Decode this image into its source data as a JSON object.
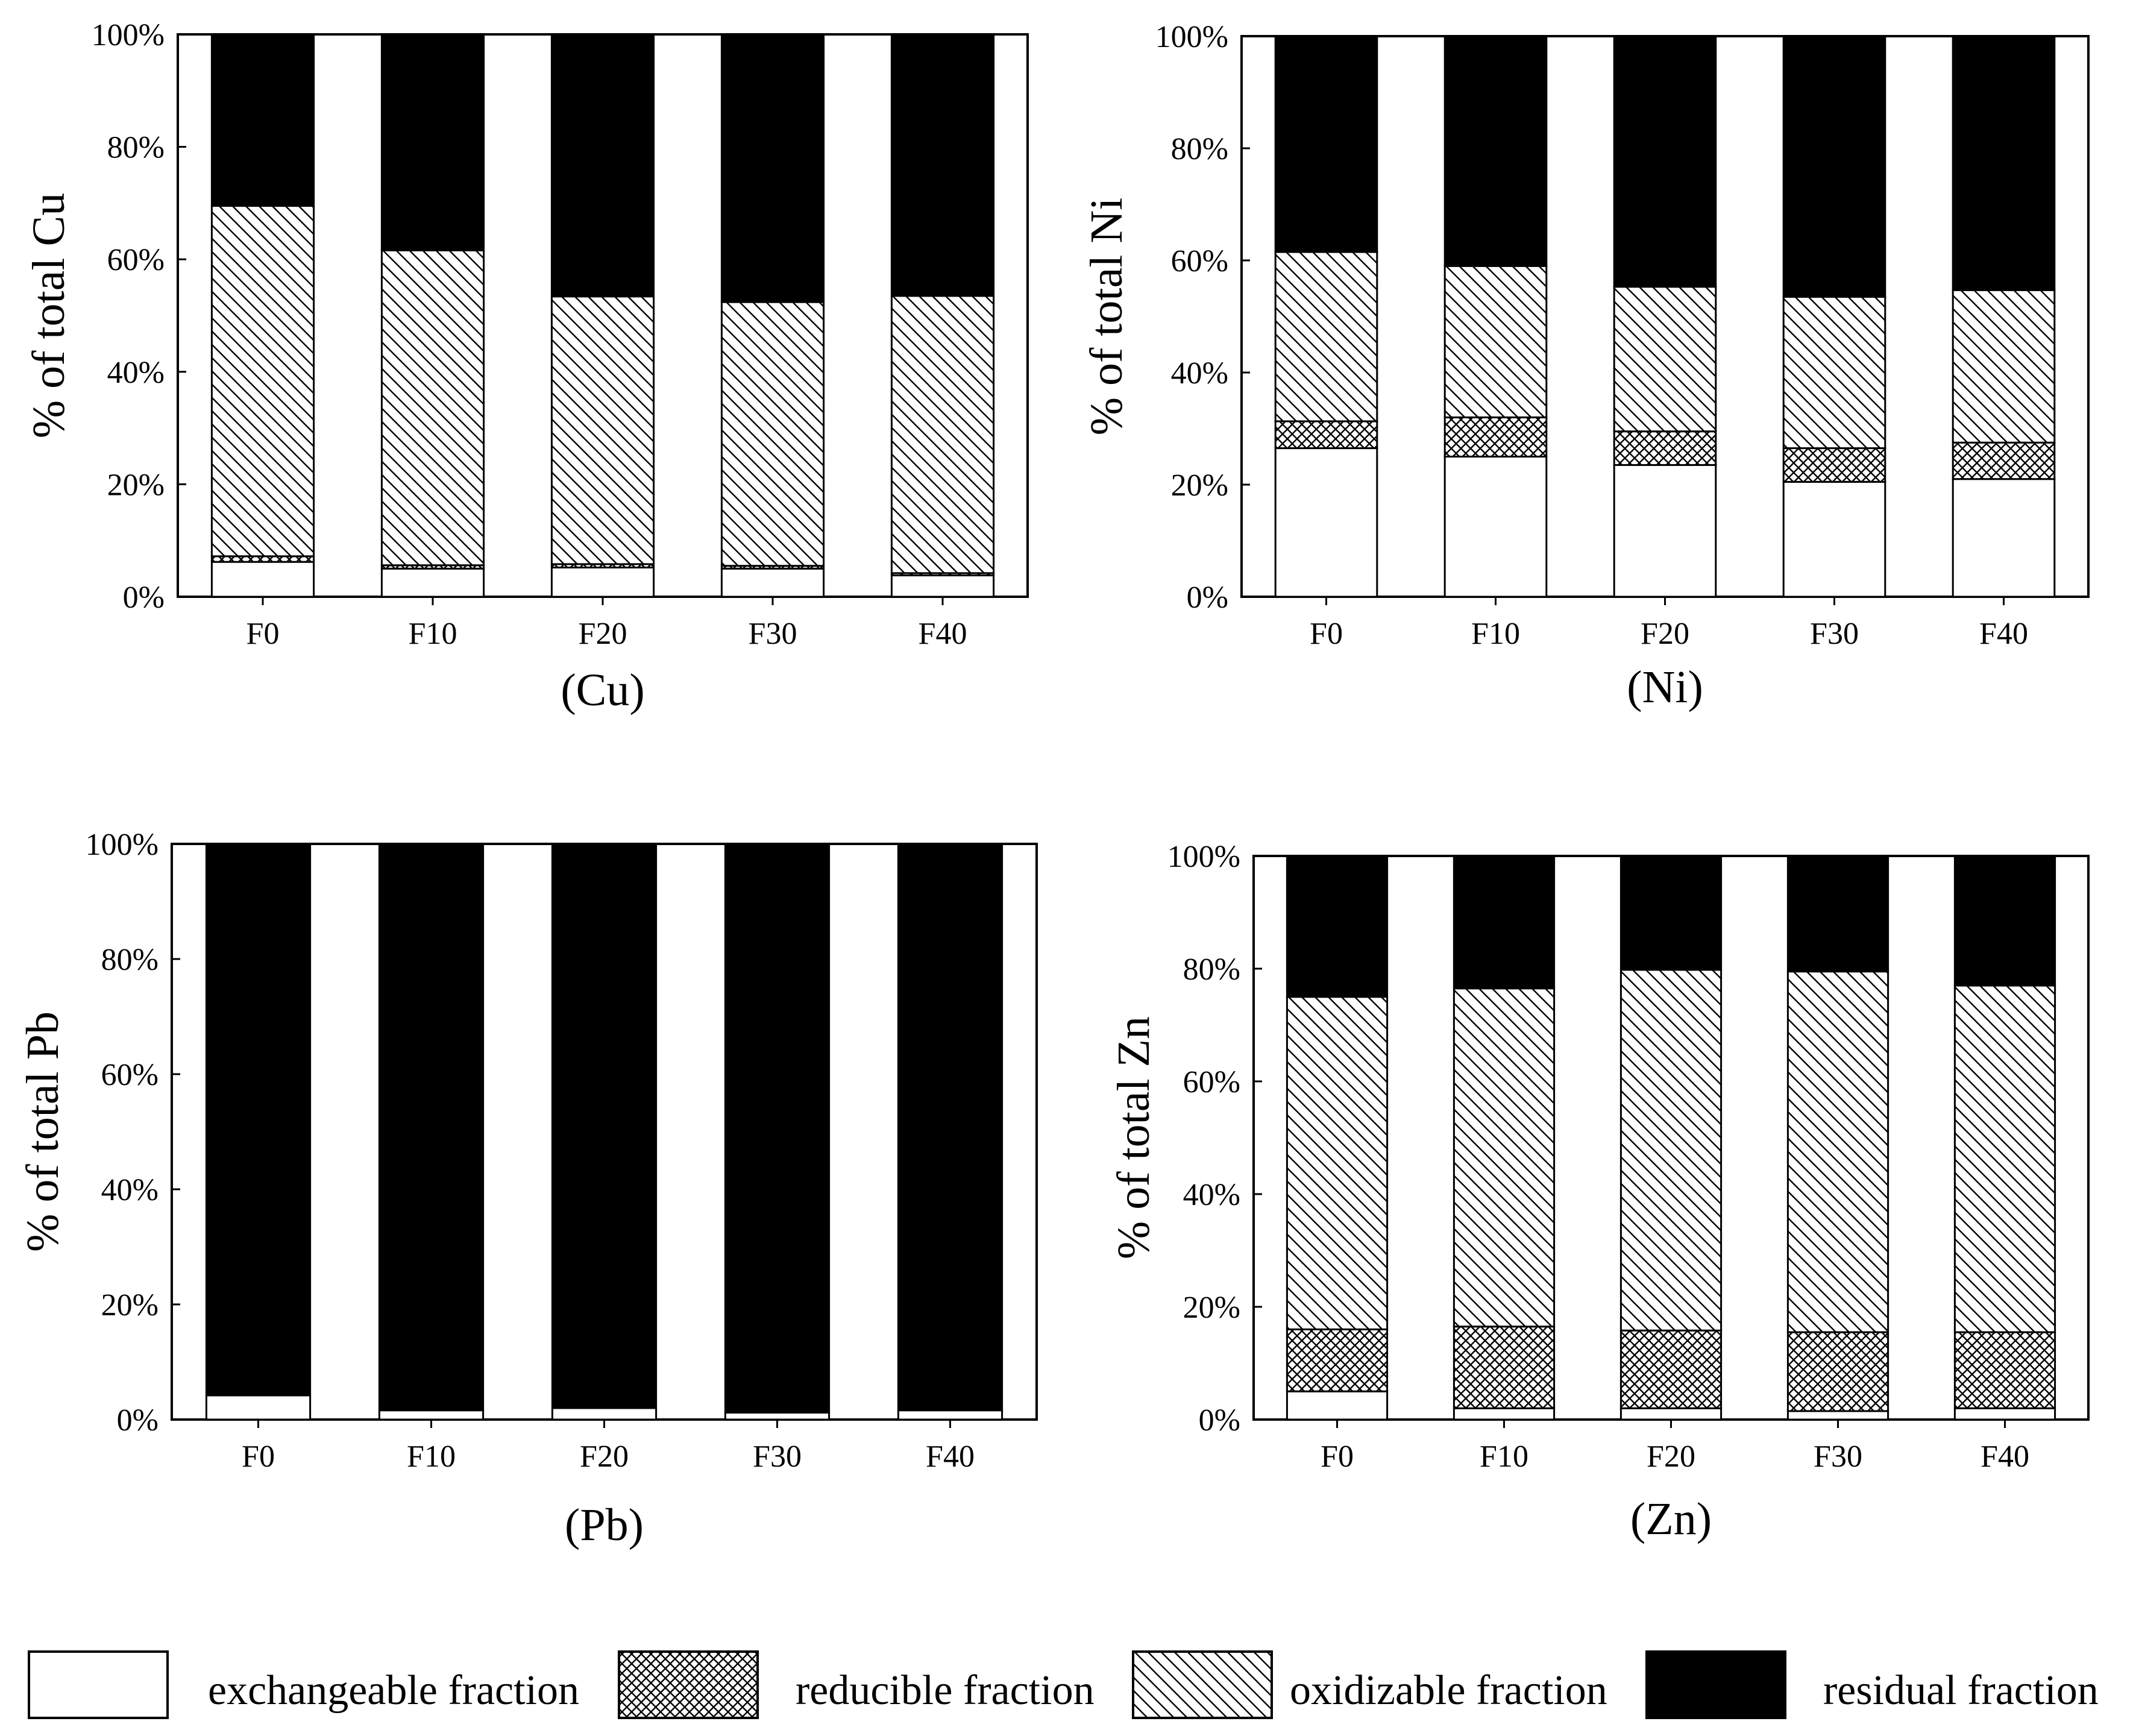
{
  "colors": {
    "ink": "#000000",
    "paper": "#ffffff"
  },
  "legend": [
    {
      "key": "exchangeable",
      "label": "exchangeable fraction",
      "pattern": "blank"
    },
    {
      "key": "reducible",
      "label": "reducible fraction",
      "pattern": "crosshatch"
    },
    {
      "key": "oxidizable",
      "label": "oxidizable fraction",
      "pattern": "diagonal-hatch"
    },
    {
      "key": "residual",
      "label": "residual fraction",
      "pattern": "solid-black"
    }
  ],
  "chart_data": [
    {
      "type": "bar",
      "stacked": true,
      "title": "(Cu)",
      "ylabel": "% of total Cu",
      "xlabel": "",
      "ylim": [
        0,
        100
      ],
      "yticks": [
        "0%",
        "20%",
        "40%",
        "60%",
        "80%",
        "100%"
      ],
      "categories": [
        "F0",
        "F10",
        "F20",
        "F30",
        "F40"
      ],
      "series": [
        {
          "name": "exchangeable fraction",
          "values": [
            6.2,
            5.0,
            5.2,
            5.0,
            3.8
          ]
        },
        {
          "name": "reducible fraction",
          "values": [
            1.0,
            0.6,
            0.6,
            0.5,
            0.4
          ]
        },
        {
          "name": "oxidizable fraction",
          "values": [
            62.3,
            56.0,
            47.6,
            46.9,
            49.3
          ]
        },
        {
          "name": "residual fraction",
          "values": [
            30.5,
            38.4,
            46.6,
            47.6,
            46.5
          ]
        }
      ]
    },
    {
      "type": "bar",
      "stacked": true,
      "title": "(Ni)",
      "ylabel": "% of total Ni",
      "xlabel": "",
      "ylim": [
        0,
        100
      ],
      "yticks": [
        "0%",
        "20%",
        "40%",
        "60%",
        "80%",
        "100%"
      ],
      "categories": [
        "F0",
        "F10",
        "F20",
        "F30",
        "F40"
      ],
      "series": [
        {
          "name": "exchangeable fraction",
          "values": [
            26.5,
            25.0,
            23.5,
            20.5,
            21.0
          ]
        },
        {
          "name": "reducible fraction",
          "values": [
            4.8,
            7.0,
            6.0,
            6.0,
            6.5
          ]
        },
        {
          "name": "oxidizable fraction",
          "values": [
            30.2,
            27.0,
            25.8,
            27.0,
            27.2
          ]
        },
        {
          "name": "residual fraction",
          "values": [
            38.5,
            41.0,
            44.7,
            46.5,
            45.3
          ]
        }
      ]
    },
    {
      "type": "bar",
      "stacked": true,
      "title": "(Pb)",
      "ylabel": "% of total Pb",
      "xlabel": "",
      "ylim": [
        0,
        100
      ],
      "yticks": [
        "0%",
        "20%",
        "40%",
        "60%",
        "80%",
        "100%"
      ],
      "categories": [
        "F0",
        "F10",
        "F20",
        "F30",
        "F40"
      ],
      "series": [
        {
          "name": "exchangeable fraction",
          "values": [
            4.2,
            1.6,
            2.0,
            1.2,
            1.6
          ]
        },
        {
          "name": "reducible fraction",
          "values": [
            0,
            0,
            0,
            0,
            0
          ]
        },
        {
          "name": "oxidizable fraction",
          "values": [
            0,
            0,
            0,
            0,
            0
          ]
        },
        {
          "name": "residual fraction",
          "values": [
            95.8,
            98.4,
            98.0,
            98.8,
            98.4
          ]
        }
      ]
    },
    {
      "type": "bar",
      "stacked": true,
      "title": "(Zn)",
      "ylabel": "% of total Zn",
      "xlabel": "",
      "ylim": [
        0,
        100
      ],
      "yticks": [
        "0%",
        "20%",
        "40%",
        "60%",
        "80%",
        "100%"
      ],
      "categories": [
        "F0",
        "F10",
        "F20",
        "F30",
        "F40"
      ],
      "series": [
        {
          "name": "exchangeable fraction",
          "values": [
            5.0,
            2.0,
            2.0,
            1.5,
            2.0
          ]
        },
        {
          "name": "reducible fraction",
          "values": [
            11.0,
            14.5,
            13.8,
            14.0,
            13.5
          ]
        },
        {
          "name": "oxidizable fraction",
          "values": [
            59.0,
            60.0,
            64.0,
            64.0,
            61.5
          ]
        },
        {
          "name": "residual fraction",
          "values": [
            25.0,
            23.5,
            20.2,
            20.5,
            23.0
          ]
        }
      ]
    }
  ]
}
